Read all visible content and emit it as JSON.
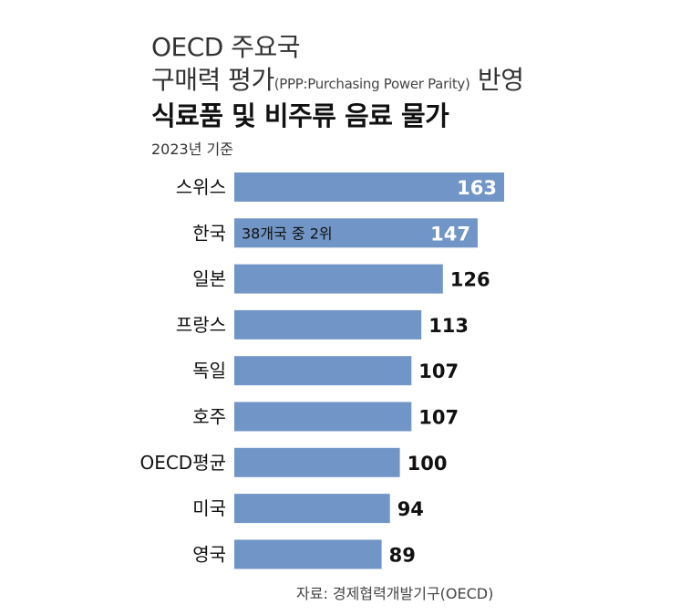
{
  "header": {
    "title_line1": "OECD 주요국",
    "title_line2_main": "구매력 평가",
    "title_line2_paren": "(PPP:Purchasing Power Parity)",
    "title_line2_end": " 반영",
    "title_line3": "식료품 및 비주류 음료 물가",
    "subtitle": "2023년 기준"
  },
  "source": "자료: 경제협력개발기구(OECD)",
  "colors": {
    "bar": "#7195c6",
    "value_inside": "#ffffff",
    "value_outside": "#111111"
  },
  "chart_data": {
    "type": "bar",
    "orientation": "horizontal",
    "categories": [
      "스위스",
      "한국",
      "일본",
      "프랑스",
      "독일",
      "호주",
      "OECD평균",
      "미국",
      "영국"
    ],
    "values": [
      163,
      147,
      126,
      113,
      107,
      107,
      100,
      94,
      89
    ],
    "annotations": [
      {
        "category": "한국",
        "text": "38개국 중 2위"
      }
    ],
    "grid": false,
    "legend": "none"
  }
}
